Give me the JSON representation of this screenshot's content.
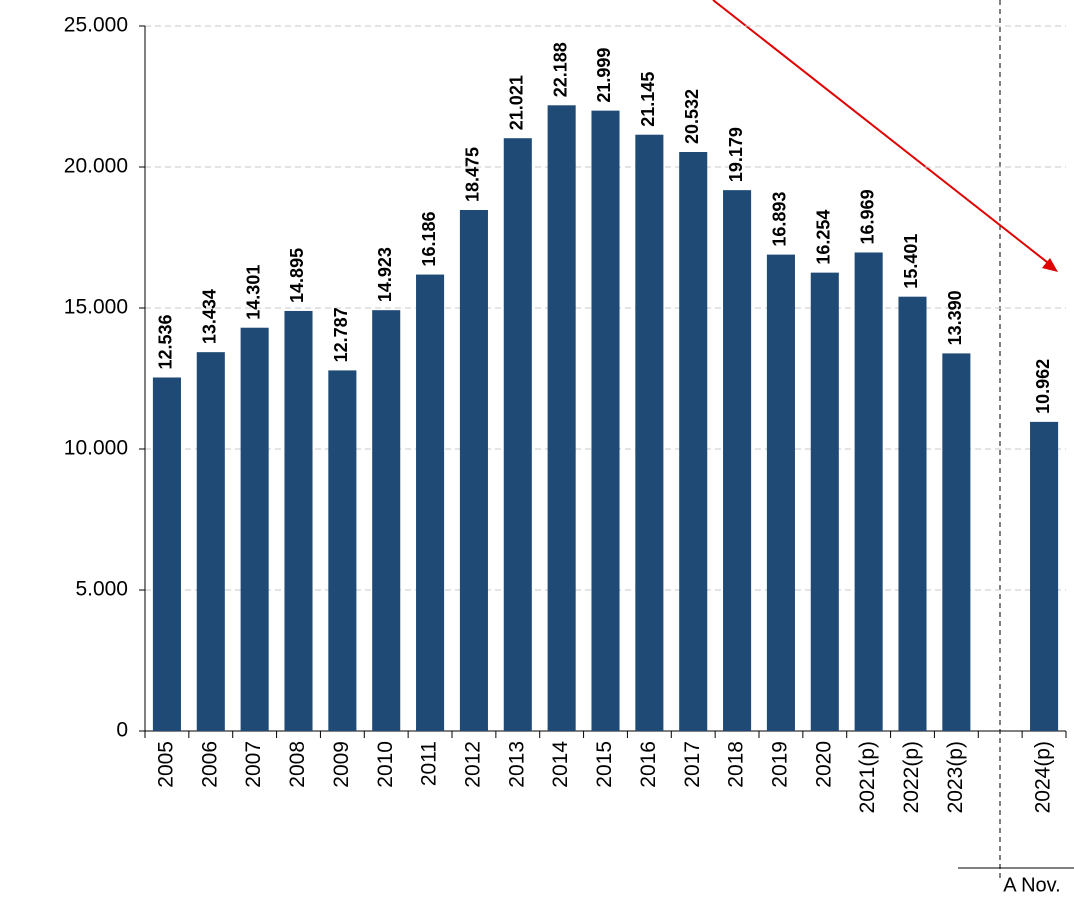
{
  "chart_data": {
    "type": "bar",
    "categories": [
      "2005",
      "2006",
      "2007",
      "2008",
      "2009",
      "2010",
      "2011",
      "2012",
      "2013",
      "2014",
      "2015",
      "2016",
      "2017",
      "2018",
      "2019",
      "2020",
      "2021(p)",
      "2022(p)",
      "2023(p)",
      null,
      "2024(p)"
    ],
    "values": [
      12536,
      13434,
      14301,
      14895,
      12787,
      14923,
      16186,
      18475,
      21021,
      22188,
      21999,
      21145,
      20532,
      19179,
      16893,
      16254,
      16969,
      15401,
      13390,
      null,
      10962
    ],
    "value_labels": [
      "12.536",
      "13.434",
      "14.301",
      "14.895",
      "12.787",
      "14.923",
      "16.186",
      "18.475",
      "21.021",
      "22.188",
      "21.999",
      "21.145",
      "20.532",
      "19.179",
      "16.893",
      "16.254",
      "16.969",
      "15.401",
      "13.390",
      null,
      "10.962"
    ],
    "color": "#1f4a75",
    "ylim": [
      0,
      25000
    ],
    "yticks": [
      0,
      {
        "value": 5000,
        "label": "5.000"
      },
      {
        "value": 10000,
        "label": "10.000"
      },
      {
        "value": 15000,
        "label": "15.000"
      },
      {
        "value": 20000,
        "label": "20.000"
      },
      {
        "value": 25000,
        "label": "25.000"
      }
    ],
    "grid": true,
    "annotation": "A Nov."
  }
}
